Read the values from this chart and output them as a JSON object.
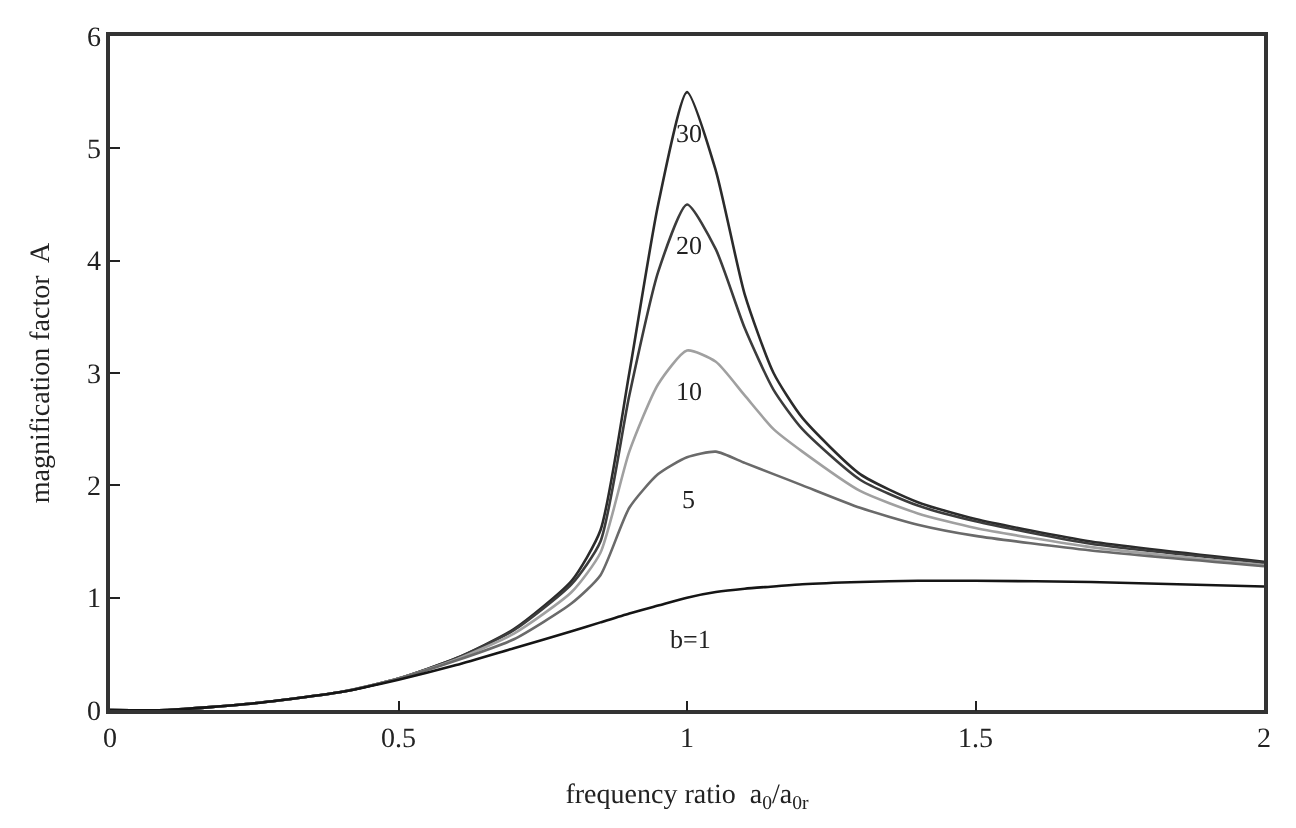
{
  "chart_data": {
    "type": "line",
    "xlabel": "frequency ratio  a$_{0}$/a$_{0r}$",
    "ylabel": "magnification factor  A",
    "x": [
      0,
      0.1,
      0.25,
      0.4,
      0.5,
      0.6,
      0.7,
      0.8,
      0.85,
      0.9,
      0.95,
      1.0,
      1.05,
      1.1,
      1.15,
      1.2,
      1.3,
      1.4,
      1.5,
      1.7,
      2.0
    ],
    "series": [
      {
        "name": "30",
        "color": "#2b2b2b",
        "values": [
          0,
          0,
          0.06,
          0.16,
          0.28,
          0.46,
          0.72,
          1.15,
          1.6,
          3.0,
          4.5,
          5.5,
          4.8,
          3.7,
          3.0,
          2.6,
          2.1,
          1.85,
          1.7,
          1.5,
          1.32
        ]
      },
      {
        "name": "20",
        "color": "#3c3c3c",
        "values": [
          0,
          0,
          0.06,
          0.16,
          0.28,
          0.46,
          0.71,
          1.12,
          1.5,
          2.8,
          3.9,
          4.5,
          4.1,
          3.4,
          2.85,
          2.5,
          2.05,
          1.82,
          1.68,
          1.48,
          1.31
        ]
      },
      {
        "name": "10",
        "color": "#a0a0a0",
        "values": [
          0,
          0,
          0.06,
          0.16,
          0.28,
          0.45,
          0.68,
          1.05,
          1.4,
          2.3,
          2.9,
          3.2,
          3.1,
          2.8,
          2.5,
          2.3,
          1.95,
          1.75,
          1.62,
          1.45,
          1.29
        ]
      },
      {
        "name": "5",
        "color": "#6a6a6a",
        "values": [
          0,
          0,
          0.06,
          0.16,
          0.28,
          0.44,
          0.63,
          0.95,
          1.2,
          1.8,
          2.1,
          2.25,
          2.3,
          2.2,
          2.1,
          2.0,
          1.8,
          1.65,
          1.55,
          1.42,
          1.28
        ]
      },
      {
        "name": "b=1",
        "color": "#151515",
        "values": [
          0,
          0,
          0.06,
          0.16,
          0.27,
          0.4,
          0.55,
          0.7,
          0.78,
          0.86,
          0.93,
          1.0,
          1.05,
          1.08,
          1.1,
          1.12,
          1.14,
          1.15,
          1.15,
          1.14,
          1.1
        ]
      }
    ],
    "xlim": [
      0,
      2
    ],
    "xticks": [
      0,
      0.5,
      1,
      1.5,
      2
    ],
    "ylim": [
      0,
      6
    ],
    "yticks": [
      0,
      1,
      2,
      3,
      4,
      5,
      6
    ],
    "legend": false,
    "marker": "none",
    "line_style": "solid"
  }
}
